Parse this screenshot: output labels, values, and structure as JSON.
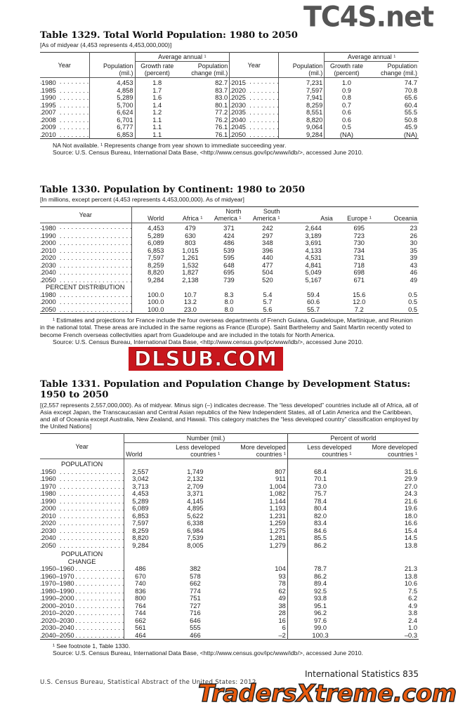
{
  "watermarks": {
    "top": "TC4S.net",
    "middle": "DLSUB.COM",
    "bottom": "TradersXtreme.com"
  },
  "t1329": {
    "title": "Table 1329. Total World Population: 1980 to 2050",
    "headnote": "[As of midyear (4,453 represents 4,453,000,000)]",
    "h_year": "Year",
    "h_pop": "Population (mil.)",
    "h_avg": "Average annual",
    "h_growth": "Growth rate (percent)",
    "h_change": "Population change (mil.)",
    "rows": [
      [
        "1980",
        "4,453",
        "1.8",
        "82.7",
        "2015",
        "7,231",
        "1.0",
        "74.7"
      ],
      [
        "1985",
        "4,858",
        "1.7",
        "83.7",
        "2020",
        "7,597",
        "0.9",
        "70.8"
      ],
      [
        "1990",
        "5,289",
        "1.6",
        "83.0",
        "2025",
        "7,941",
        "0.8",
        "65.6"
      ],
      [
        "1995",
        "5,700",
        "1.4",
        "80.1",
        "2030",
        "8,259",
        "0.7",
        "60.4"
      ],
      [
        "2007",
        "6,624",
        "1.2",
        "77.2",
        "2035",
        "8,551",
        "0.6",
        "55.5"
      ],
      [
        "2008",
        "6,701",
        "1.1",
        "76.2",
        "2040",
        "8,820",
        "0.6",
        "50.8"
      ],
      [
        "2009",
        "6,777",
        "1.1",
        "76.1",
        "2045",
        "9,064",
        "0.5",
        "45.9"
      ],
      [
        "2010",
        "6,853",
        "1.1",
        "76.1",
        "2050",
        "9,284",
        "(NA)",
        "(NA)"
      ]
    ],
    "note": "NA Not available. ¹ Represents change from year shown to immediate succeeding year.",
    "source": "Source: U.S. Census Bureau, International Data Base, <http://www.census.gov/ipc/www/idb/>, accessed June 2010."
  },
  "t1330": {
    "title": "Table 1330. Population by Continent: 1980 to 2050",
    "headnote": "[In millions, except percent (4,453 represents 4,453,000,000). As of midyear]",
    "columns": [
      "Year",
      "World",
      "Africa ¹",
      "North America ¹",
      "South America ¹",
      "Asia",
      "Europe ¹",
      "Oceania"
    ],
    "rows": [
      [
        "1980",
        "4,453",
        "479",
        "371",
        "242",
        "2,644",
        "695",
        "23"
      ],
      [
        "1990",
        "5,289",
        "630",
        "424",
        "297",
        "3,189",
        "723",
        "26"
      ],
      [
        "2000",
        "6,089",
        "803",
        "486",
        "348",
        "3,691",
        "730",
        "30"
      ],
      [
        "2010",
        "6,853",
        "1,015",
        "539",
        "396",
        "4,133",
        "734",
        "35"
      ],
      [
        "2020",
        "7,597",
        "1,261",
        "595",
        "440",
        "4,531",
        "731",
        "39"
      ],
      [
        "2030",
        "8,259",
        "1,532",
        "648",
        "477",
        "4,841",
        "718",
        "43"
      ],
      [
        "2040",
        "8,820",
        "1,827",
        "695",
        "504",
        "5,049",
        "698",
        "46"
      ],
      [
        "2050",
        "9,284",
        "2,138",
        "739",
        "520",
        "5,167",
        "671",
        "49"
      ]
    ],
    "subhead": "PERCENT DISTRIBUTION",
    "pct_rows": [
      [
        "1980",
        "100.0",
        "10.7",
        "8.3",
        "5.4",
        "59.4",
        "15.6",
        "0.5"
      ],
      [
        "2000",
        "100.0",
        "13.2",
        "8.0",
        "5.7",
        "60.6",
        "12.0",
        "0.5"
      ],
      [
        "2050",
        "100.0",
        "23.0",
        "8.0",
        "5.6",
        "55.7",
        "7.2",
        "0.5"
      ]
    ],
    "note": "¹ Estimates and projections for France include the four overseas departments of French Guiana, Guadeloupe, Martinique, and Reunion in the national total. These areas are included in the same regions as France (Europe). Saint Barthelemy and Saint Martin recently voted to become French overseas collectivities apart from Guadeloupe and are included in the totals for North America.",
    "source": "Source: U.S. Census Bureau, International Data Base, <http://www.census.gov/ipc/www/idb/>, accessed June 2010."
  },
  "t1331": {
    "title": "Table 1331. Population and Population Change by Development Status: 1950 to 2050",
    "headnote": "[(2,557 represents 2,557,000,000). As of midyear. Minus sign (–) indicates decrease. The “less developed” countries include all of Africa, all of Asia except Japan, the Transcaucasian and Central Asian republics of the New Independent States, all of Latin America and the Caribbean, and all of Oceania except Australia, New Zealand, and Hawaii. This category matches the “less developed country” classification employed by the United Nations]",
    "h_year": "Year",
    "h_number": "Number (mil.)",
    "h_percent": "Percent of world",
    "h_world": "World",
    "h_less": "Less developed countries ¹",
    "h_more": "More developed countries ¹",
    "sub1": "POPULATION",
    "rows1": [
      [
        "1950",
        "2,557",
        "1,749",
        "807",
        "68.4",
        "31.6"
      ],
      [
        "1960",
        "3,042",
        "2,132",
        "911",
        "70.1",
        "29.9"
      ],
      [
        "1970",
        "3,713",
        "2,709",
        "1,004",
        "73.0",
        "27.0"
      ],
      [
        "1980",
        "4,453",
        "3,371",
        "1,082",
        "75.7",
        "24.3"
      ],
      [
        "1990",
        "5,289",
        "4,145",
        "1,144",
        "78.4",
        "21.6"
      ],
      [
        "2000",
        "6,089",
        "4,895",
        "1,193",
        "80.4",
        "19.6"
      ],
      [
        "2010",
        "6,853",
        "5,622",
        "1,231",
        "82.0",
        "18.0"
      ],
      [
        "2020",
        "7,597",
        "6,338",
        "1,259",
        "83.4",
        "16.6"
      ],
      [
        "2030",
        "8,259",
        "6,984",
        "1,275",
        "84.6",
        "15.4"
      ],
      [
        "2040",
        "8,820",
        "7,539",
        "1,281",
        "85.5",
        "14.5"
      ],
      [
        "2050",
        "9,284",
        "8,005",
        "1,279",
        "86.2",
        "13.8"
      ]
    ],
    "sub2": "POPULATION CHANGE",
    "rows2": [
      [
        "1950–1960",
        "486",
        "382",
        "104",
        "78.7",
        "21.3"
      ],
      [
        "1960–1970",
        "670",
        "578",
        "93",
        "86.2",
        "13.8"
      ],
      [
        "1970–1980",
        "740",
        "662",
        "78",
        "89.4",
        "10.6"
      ],
      [
        "1980–1990",
        "836",
        "774",
        "62",
        "92.5",
        "7.5"
      ],
      [
        "1990–2000",
        "800",
        "751",
        "49",
        "93.8",
        "6.2"
      ],
      [
        "2000–2010",
        "764",
        "727",
        "38",
        "95.1",
        "4.9"
      ],
      [
        "2010–2020",
        "744",
        "716",
        "28",
        "96.2",
        "3.8"
      ],
      [
        "2020–2030",
        "662",
        "646",
        "16",
        "97.6",
        "2.4"
      ],
      [
        "2030–2040",
        "561",
        "555",
        "6",
        "99.0",
        "1.0"
      ],
      [
        "2040–2050",
        "464",
        "466",
        "–2",
        "100.3",
        "–0.3"
      ]
    ],
    "note": "¹ See footnote 1, Table 1330.",
    "source": "Source: U.S. Census Bureau, International Data Base, <http://www.census.gov/ipc/www/idb/>, accessed June 2010."
  },
  "footer": {
    "left": "U.S. Census Bureau, Statistical Abstract of the United States: 2012",
    "right": "International Statistics 835"
  }
}
